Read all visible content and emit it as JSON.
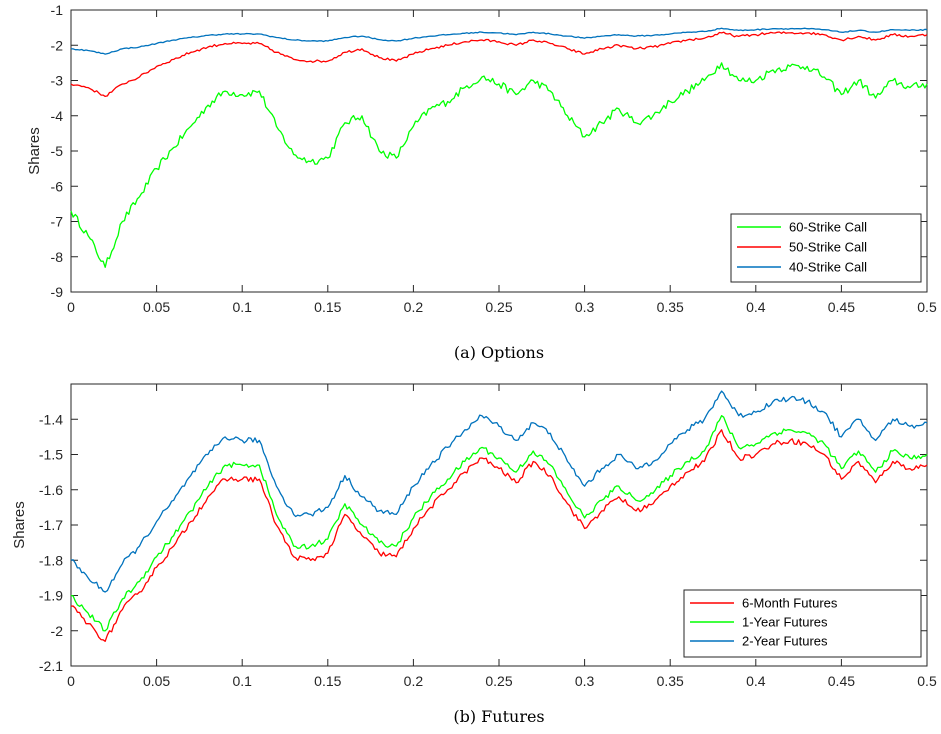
{
  "chart_data": [
    {
      "type": "line",
      "caption": "(a)  Options",
      "ylabel": "Shares",
      "xlim": [
        0,
        0.5
      ],
      "ylim": [
        -9,
        -1
      ],
      "xticks": [
        "0",
        "0.05",
        "0.1",
        "0.15",
        "0.2",
        "0.25",
        "0.3",
        "0.35",
        "0.4",
        "0.45",
        "0.5"
      ],
      "yticks": [
        "-1",
        "-2",
        "-3",
        "-4",
        "-5",
        "-6",
        "-7",
        "-8",
        "-9"
      ],
      "legend_position": "bottom-right",
      "grid": false,
      "x": [
        0,
        0.01,
        0.02,
        0.03,
        0.04,
        0.05,
        0.06,
        0.07,
        0.08,
        0.09,
        0.1,
        0.11,
        0.12,
        0.13,
        0.14,
        0.15,
        0.16,
        0.17,
        0.18,
        0.19,
        0.2,
        0.21,
        0.22,
        0.23,
        0.24,
        0.25,
        0.26,
        0.27,
        0.28,
        0.29,
        0.3,
        0.31,
        0.32,
        0.33,
        0.34,
        0.35,
        0.36,
        0.37,
        0.38,
        0.39,
        0.4,
        0.41,
        0.42,
        0.43,
        0.44,
        0.45,
        0.46,
        0.47,
        0.48,
        0.49,
        0.5
      ],
      "series": [
        {
          "name": "60-Strike Call",
          "color": "#00ff00",
          "values": [
            -6.7,
            -7.4,
            -8.3,
            -7.0,
            -6.3,
            -5.5,
            -4.9,
            -4.3,
            -3.7,
            -3.3,
            -3.4,
            -3.3,
            -4.3,
            -5.1,
            -5.3,
            -5.2,
            -4.2,
            -4.0,
            -5.0,
            -5.2,
            -4.3,
            -3.8,
            -3.6,
            -3.2,
            -2.9,
            -3.1,
            -3.4,
            -3.0,
            -3.3,
            -4.0,
            -4.6,
            -4.2,
            -3.8,
            -4.2,
            -4.0,
            -3.6,
            -3.3,
            -3.0,
            -2.5,
            -3.0,
            -3.0,
            -2.7,
            -2.6,
            -2.6,
            -2.9,
            -3.4,
            -3.0,
            -3.5,
            -3.0,
            -3.2,
            -3.1
          ]
        },
        {
          "name": "50-Strike Call",
          "color": "#ff0000",
          "values": [
            -3.1,
            -3.2,
            -3.45,
            -3.1,
            -2.9,
            -2.6,
            -2.4,
            -2.2,
            -2.05,
            -1.95,
            -1.95,
            -1.95,
            -2.2,
            -2.4,
            -2.45,
            -2.45,
            -2.2,
            -2.1,
            -2.35,
            -2.45,
            -2.25,
            -2.1,
            -2.0,
            -1.9,
            -1.85,
            -1.9,
            -2.0,
            -1.85,
            -1.95,
            -2.1,
            -2.25,
            -2.1,
            -2.0,
            -2.1,
            -2.05,
            -1.95,
            -1.85,
            -1.8,
            -1.65,
            -1.75,
            -1.7,
            -1.65,
            -1.65,
            -1.65,
            -1.7,
            -1.85,
            -1.75,
            -1.85,
            -1.7,
            -1.75,
            -1.7
          ]
        },
        {
          "name": "40-Strike Call",
          "color": "#0072bd",
          "values": [
            -2.1,
            -2.15,
            -2.25,
            -2.1,
            -2.05,
            -1.95,
            -1.85,
            -1.78,
            -1.72,
            -1.68,
            -1.68,
            -1.68,
            -1.78,
            -1.85,
            -1.88,
            -1.88,
            -1.78,
            -1.74,
            -1.84,
            -1.88,
            -1.8,
            -1.74,
            -1.7,
            -1.66,
            -1.63,
            -1.65,
            -1.7,
            -1.63,
            -1.68,
            -1.74,
            -1.8,
            -1.74,
            -1.7,
            -1.74,
            -1.72,
            -1.68,
            -1.63,
            -1.61,
            -1.52,
            -1.58,
            -1.56,
            -1.53,
            -1.53,
            -1.53,
            -1.56,
            -1.63,
            -1.58,
            -1.63,
            -1.56,
            -1.58,
            -1.56
          ]
        }
      ]
    },
    {
      "type": "line",
      "caption": "(b)  Futures",
      "ylabel": "Shares",
      "xlim": [
        0,
        0.5
      ],
      "ylim": [
        -2.1,
        -1.3
      ],
      "xticks": [
        "0",
        "0.05",
        "0.1",
        "0.15",
        "0.2",
        "0.25",
        "0.3",
        "0.35",
        "0.4",
        "0.45",
        "0.5"
      ],
      "yticks": [
        "-1.4",
        "-1.5",
        "-1.6",
        "-1.7",
        "-1.8",
        "-1.9",
        "-2",
        "-2.1"
      ],
      "legend_position": "bottom-right",
      "grid": false,
      "x": [
        0,
        0.01,
        0.02,
        0.03,
        0.04,
        0.05,
        0.06,
        0.07,
        0.08,
        0.09,
        0.1,
        0.11,
        0.12,
        0.13,
        0.14,
        0.15,
        0.16,
        0.17,
        0.18,
        0.19,
        0.2,
        0.21,
        0.22,
        0.23,
        0.24,
        0.25,
        0.26,
        0.27,
        0.28,
        0.29,
        0.3,
        0.31,
        0.32,
        0.33,
        0.34,
        0.35,
        0.36,
        0.37,
        0.38,
        0.39,
        0.4,
        0.41,
        0.42,
        0.43,
        0.44,
        0.45,
        0.46,
        0.47,
        0.48,
        0.49,
        0.5
      ],
      "series": [
        {
          "name": "6-Month Futures",
          "color": "#ff0000",
          "values": [
            -1.93,
            -1.98,
            -2.03,
            -1.94,
            -1.89,
            -1.82,
            -1.76,
            -1.69,
            -1.62,
            -1.57,
            -1.57,
            -1.57,
            -1.7,
            -1.79,
            -1.8,
            -1.78,
            -1.67,
            -1.73,
            -1.78,
            -1.79,
            -1.71,
            -1.65,
            -1.6,
            -1.55,
            -1.51,
            -1.54,
            -1.58,
            -1.52,
            -1.56,
            -1.64,
            -1.71,
            -1.66,
            -1.62,
            -1.66,
            -1.64,
            -1.59,
            -1.55,
            -1.52,
            -1.43,
            -1.51,
            -1.5,
            -1.47,
            -1.46,
            -1.47,
            -1.5,
            -1.57,
            -1.52,
            -1.58,
            -1.52,
            -1.54,
            -1.53
          ]
        },
        {
          "name": "1-Year Futures",
          "color": "#00ff00",
          "values": [
            -1.9,
            -1.95,
            -2.0,
            -1.91,
            -1.86,
            -1.79,
            -1.73,
            -1.66,
            -1.59,
            -1.53,
            -1.53,
            -1.53,
            -1.67,
            -1.76,
            -1.76,
            -1.74,
            -1.64,
            -1.7,
            -1.75,
            -1.76,
            -1.68,
            -1.62,
            -1.57,
            -1.52,
            -1.48,
            -1.51,
            -1.55,
            -1.49,
            -1.53,
            -1.61,
            -1.68,
            -1.63,
            -1.59,
            -1.63,
            -1.61,
            -1.56,
            -1.52,
            -1.49,
            -1.39,
            -1.48,
            -1.47,
            -1.44,
            -1.43,
            -1.44,
            -1.47,
            -1.54,
            -1.49,
            -1.55,
            -1.49,
            -1.51,
            -1.5
          ]
        },
        {
          "name": "2-Year Futures",
          "color": "#0072bd",
          "values": [
            -1.8,
            -1.85,
            -1.89,
            -1.81,
            -1.76,
            -1.69,
            -1.63,
            -1.56,
            -1.5,
            -1.45,
            -1.46,
            -1.46,
            -1.59,
            -1.67,
            -1.67,
            -1.65,
            -1.56,
            -1.62,
            -1.66,
            -1.67,
            -1.59,
            -1.53,
            -1.48,
            -1.43,
            -1.39,
            -1.42,
            -1.46,
            -1.41,
            -1.44,
            -1.52,
            -1.59,
            -1.54,
            -1.5,
            -1.54,
            -1.52,
            -1.47,
            -1.43,
            -1.4,
            -1.32,
            -1.39,
            -1.38,
            -1.35,
            -1.34,
            -1.35,
            -1.38,
            -1.45,
            -1.4,
            -1.46,
            -1.4,
            -1.42,
            -1.41
          ]
        }
      ]
    }
  ]
}
